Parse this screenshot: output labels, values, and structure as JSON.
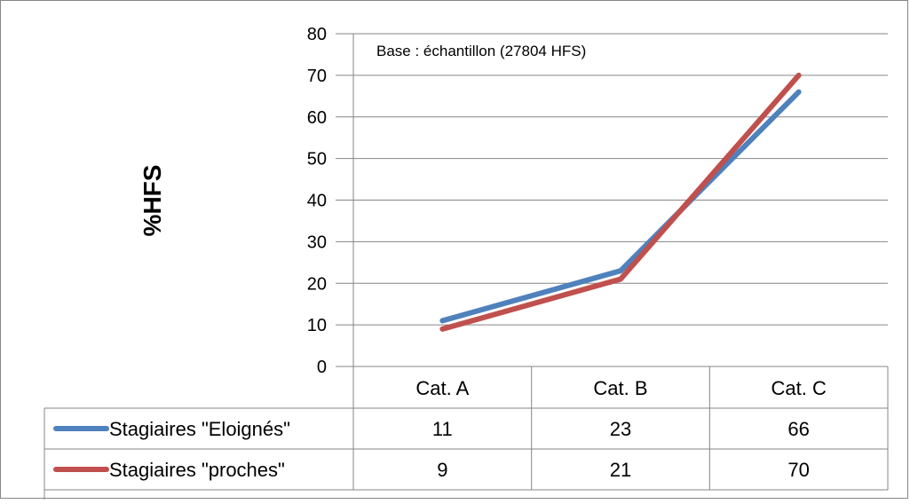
{
  "chart_data": {
    "type": "line",
    "categories": [
      "Cat. A",
      "Cat. B",
      "Cat. C"
    ],
    "series": [
      {
        "name": "Stagiaires \"Eloignés\"",
        "values": [
          11,
          23,
          66
        ],
        "color": "#4f81bd"
      },
      {
        "name": "Stagiaires \"proches\"",
        "values": [
          9,
          21,
          70
        ],
        "color": "#c0504d"
      }
    ],
    "ylabel": "%HFS",
    "ylim": [
      0,
      80
    ],
    "yticks": [
      0,
      10,
      20,
      30,
      40,
      50,
      60,
      70,
      80
    ],
    "annotation": "Base : échantillon (27804 HFS)",
    "grid": true,
    "legend": "data-table"
  }
}
